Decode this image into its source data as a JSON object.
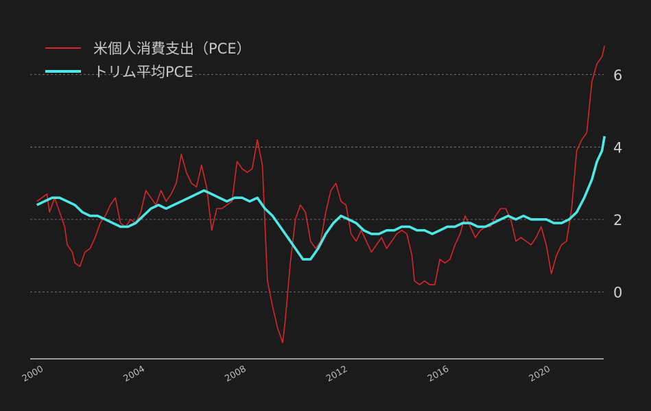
{
  "chart_data": {
    "type": "line",
    "title": "",
    "xlabel": "",
    "ylabel": "",
    "xlim": [
      2000,
      2022.6
    ],
    "ylim": [
      -1.85,
      7.0
    ],
    "grid": "horizontal dashed",
    "legend_position": "top-left",
    "x_ticks": [
      2000,
      2004,
      2008,
      2012,
      2016,
      2020
    ],
    "x_tick_labels": [
      "2000",
      "2004",
      "2008",
      "2012",
      "2016",
      "2020"
    ],
    "y_ticks": [
      0,
      2,
      4,
      6
    ],
    "y_tick_labels": [
      "0",
      "2",
      "4",
      "6"
    ],
    "series": [
      {
        "name": "米個人消費支出（PCE）",
        "color": "#d7262c",
        "points": [
          [
            2000.1,
            2.5
          ],
          [
            2000.3,
            2.6
          ],
          [
            2000.5,
            2.7
          ],
          [
            2000.6,
            2.2
          ],
          [
            2000.8,
            2.6
          ],
          [
            2001.0,
            2.2
          ],
          [
            2001.2,
            1.8
          ],
          [
            2001.3,
            1.3
          ],
          [
            2001.5,
            1.1
          ],
          [
            2001.6,
            0.8
          ],
          [
            2001.8,
            0.7
          ],
          [
            2002.0,
            1.1
          ],
          [
            2002.2,
            1.2
          ],
          [
            2002.4,
            1.5
          ],
          [
            2002.6,
            1.9
          ],
          [
            2002.8,
            2.1
          ],
          [
            2003.0,
            2.4
          ],
          [
            2003.2,
            2.6
          ],
          [
            2003.4,
            1.9
          ],
          [
            2003.6,
            1.8
          ],
          [
            2003.8,
            2.0
          ],
          [
            2004.0,
            1.9
          ],
          [
            2004.2,
            2.2
          ],
          [
            2004.4,
            2.8
          ],
          [
            2004.6,
            2.6
          ],
          [
            2004.8,
            2.4
          ],
          [
            2005.0,
            2.8
          ],
          [
            2005.2,
            2.5
          ],
          [
            2005.4,
            2.7
          ],
          [
            2005.6,
            3.0
          ],
          [
            2005.8,
            3.8
          ],
          [
            2006.0,
            3.3
          ],
          [
            2006.2,
            3.0
          ],
          [
            2006.4,
            2.9
          ],
          [
            2006.6,
            3.5
          ],
          [
            2006.8,
            2.9
          ],
          [
            2007.0,
            1.7
          ],
          [
            2007.2,
            2.3
          ],
          [
            2007.4,
            2.3
          ],
          [
            2007.6,
            2.4
          ],
          [
            2007.8,
            2.5
          ],
          [
            2008.0,
            3.6
          ],
          [
            2008.2,
            3.4
          ],
          [
            2008.4,
            3.3
          ],
          [
            2008.6,
            3.4
          ],
          [
            2008.8,
            4.2
          ],
          [
            2009.0,
            3.5
          ],
          [
            2009.2,
            0.3
          ],
          [
            2009.4,
            -0.4
          ],
          [
            2009.6,
            -1.0
          ],
          [
            2009.8,
            -1.4
          ],
          [
            2009.9,
            -0.8
          ],
          [
            2010.1,
            0.8
          ],
          [
            2010.3,
            2.0
          ],
          [
            2010.5,
            2.4
          ],
          [
            2010.7,
            2.2
          ],
          [
            2010.9,
            1.4
          ],
          [
            2011.1,
            1.2
          ],
          [
            2011.3,
            1.4
          ],
          [
            2011.5,
            2.2
          ],
          [
            2011.7,
            2.8
          ],
          [
            2011.9,
            3.0
          ],
          [
            2012.1,
            2.5
          ],
          [
            2012.3,
            2.4
          ],
          [
            2012.5,
            1.6
          ],
          [
            2012.7,
            1.4
          ],
          [
            2012.9,
            1.7
          ],
          [
            2013.1,
            1.4
          ],
          [
            2013.3,
            1.1
          ],
          [
            2013.5,
            1.3
          ],
          [
            2013.7,
            1.5
          ],
          [
            2013.9,
            1.2
          ],
          [
            2014.1,
            1.4
          ],
          [
            2014.3,
            1.6
          ],
          [
            2014.5,
            1.7
          ],
          [
            2014.7,
            1.6
          ],
          [
            2014.9,
            1.0
          ],
          [
            2015.0,
            0.3
          ],
          [
            2015.2,
            0.2
          ],
          [
            2015.4,
            0.3
          ],
          [
            2015.6,
            0.2
          ],
          [
            2015.8,
            0.2
          ],
          [
            2016.0,
            0.9
          ],
          [
            2016.2,
            0.8
          ],
          [
            2016.4,
            0.9
          ],
          [
            2016.6,
            1.3
          ],
          [
            2016.8,
            1.6
          ],
          [
            2017.0,
            2.1
          ],
          [
            2017.2,
            1.8
          ],
          [
            2017.4,
            1.5
          ],
          [
            2017.6,
            1.7
          ],
          [
            2017.8,
            1.8
          ],
          [
            2018.0,
            1.8
          ],
          [
            2018.2,
            2.1
          ],
          [
            2018.4,
            2.3
          ],
          [
            2018.6,
            2.3
          ],
          [
            2018.8,
            2.0
          ],
          [
            2019.0,
            1.4
          ],
          [
            2019.2,
            1.5
          ],
          [
            2019.4,
            1.4
          ],
          [
            2019.6,
            1.3
          ],
          [
            2019.8,
            1.5
          ],
          [
            2020.0,
            1.8
          ],
          [
            2020.2,
            1.3
          ],
          [
            2020.4,
            0.5
          ],
          [
            2020.6,
            1.0
          ],
          [
            2020.8,
            1.3
          ],
          [
            2021.0,
            1.4
          ],
          [
            2021.2,
            2.3
          ],
          [
            2021.4,
            3.9
          ],
          [
            2021.6,
            4.2
          ],
          [
            2021.8,
            4.4
          ],
          [
            2022.0,
            5.8
          ],
          [
            2022.2,
            6.3
          ],
          [
            2022.4,
            6.5
          ],
          [
            2022.5,
            6.8
          ]
        ]
      },
      {
        "name": "トリム平均PCE",
        "color": "#4de8e6",
        "points": [
          [
            2000.1,
            2.4
          ],
          [
            2000.4,
            2.5
          ],
          [
            2000.7,
            2.6
          ],
          [
            2001.0,
            2.6
          ],
          [
            2001.3,
            2.5
          ],
          [
            2001.6,
            2.4
          ],
          [
            2001.9,
            2.2
          ],
          [
            2002.2,
            2.1
          ],
          [
            2002.5,
            2.1
          ],
          [
            2002.8,
            2.0
          ],
          [
            2003.1,
            1.9
          ],
          [
            2003.4,
            1.8
          ],
          [
            2003.7,
            1.8
          ],
          [
            2004.0,
            1.9
          ],
          [
            2004.3,
            2.1
          ],
          [
            2004.6,
            2.3
          ],
          [
            2004.9,
            2.4
          ],
          [
            2005.2,
            2.3
          ],
          [
            2005.5,
            2.4
          ],
          [
            2005.8,
            2.5
          ],
          [
            2006.1,
            2.6
          ],
          [
            2006.4,
            2.7
          ],
          [
            2006.7,
            2.8
          ],
          [
            2007.0,
            2.7
          ],
          [
            2007.3,
            2.6
          ],
          [
            2007.6,
            2.5
          ],
          [
            2007.9,
            2.6
          ],
          [
            2008.2,
            2.6
          ],
          [
            2008.5,
            2.5
          ],
          [
            2008.8,
            2.6
          ],
          [
            2009.1,
            2.3
          ],
          [
            2009.4,
            2.1
          ],
          [
            2009.7,
            1.8
          ],
          [
            2010.0,
            1.5
          ],
          [
            2010.3,
            1.2
          ],
          [
            2010.6,
            0.9
          ],
          [
            2010.9,
            0.9
          ],
          [
            2011.2,
            1.2
          ],
          [
            2011.5,
            1.6
          ],
          [
            2011.8,
            1.9
          ],
          [
            2012.1,
            2.1
          ],
          [
            2012.4,
            2.0
          ],
          [
            2012.7,
            1.9
          ],
          [
            2013.0,
            1.7
          ],
          [
            2013.3,
            1.6
          ],
          [
            2013.6,
            1.6
          ],
          [
            2013.9,
            1.7
          ],
          [
            2014.2,
            1.7
          ],
          [
            2014.5,
            1.8
          ],
          [
            2014.8,
            1.8
          ],
          [
            2015.1,
            1.7
          ],
          [
            2015.4,
            1.7
          ],
          [
            2015.7,
            1.6
          ],
          [
            2016.0,
            1.7
          ],
          [
            2016.3,
            1.8
          ],
          [
            2016.6,
            1.8
          ],
          [
            2016.9,
            1.9
          ],
          [
            2017.2,
            1.9
          ],
          [
            2017.5,
            1.8
          ],
          [
            2017.8,
            1.8
          ],
          [
            2018.1,
            1.9
          ],
          [
            2018.4,
            2.0
          ],
          [
            2018.7,
            2.1
          ],
          [
            2019.0,
            2.0
          ],
          [
            2019.3,
            2.1
          ],
          [
            2019.6,
            2.0
          ],
          [
            2019.9,
            2.0
          ],
          [
            2020.2,
            2.0
          ],
          [
            2020.5,
            1.9
          ],
          [
            2020.8,
            1.9
          ],
          [
            2021.1,
            2.0
          ],
          [
            2021.4,
            2.2
          ],
          [
            2021.7,
            2.6
          ],
          [
            2022.0,
            3.1
          ],
          [
            2022.2,
            3.6
          ],
          [
            2022.4,
            3.9
          ],
          [
            2022.5,
            4.3
          ]
        ]
      }
    ]
  }
}
